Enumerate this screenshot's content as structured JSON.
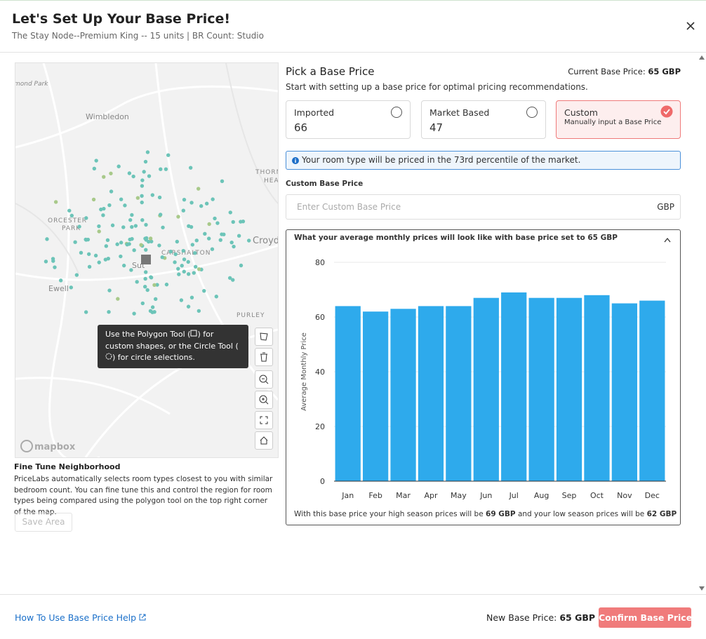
{
  "header": {
    "title": "Let's Set Up Your Base Price!",
    "subtitle": "The Stay Node--Premium King -- 15 units | BR Count: Studio"
  },
  "map": {
    "labels": [
      "mond Park",
      "Wimbledon",
      "THORN",
      "HEA",
      "ORCESTER",
      "PARK",
      "CARSHALTON",
      "Croyd",
      "Sut",
      "Ewell",
      "PURLEY"
    ],
    "attribution": "mapbox",
    "tooltip": [
      "Use the Polygon Tool (",
      ") for custom shapes, or the Circle Tool (",
      ") for circle selections."
    ]
  },
  "neighborhood": {
    "title": "Fine Tune Neighborhood",
    "description": "PriceLabs automatically selects room types closest to you with similar bedroom count. You can fine tune this and control the region for room types being compared using the polygon tool on the top right corner of the map.",
    "save_button": "Save Area"
  },
  "pick": {
    "title": "Pick a Base Price",
    "current_label": "Current Base Price:",
    "current_value": "65 GBP",
    "subtitle": "Start with setting up a base price for optimal pricing recommendations.",
    "options": [
      {
        "name": "Imported",
        "value": 66
      },
      {
        "name": "Market Based",
        "value": 47
      },
      {
        "name": "Custom",
        "description": "Manually input a Base Price"
      }
    ],
    "info": "Your room type will be priced in the 73rd percentile of the market.",
    "custom_label": "Custom Base Price",
    "custom_placeholder": "Enter Custom Base Price",
    "currency": "GBP"
  },
  "chart_data": {
    "type": "bar",
    "title": "What your average monthly prices will look like with base price set to 65 GBP",
    "y_label": "Average Monthly Price",
    "categories": [
      "Jan",
      "Feb",
      "Mar",
      "Apr",
      "May",
      "Jun",
      "Jul",
      "Aug",
      "Sep",
      "Oct",
      "Nov",
      "Dec"
    ],
    "values": [
      64,
      62,
      63,
      64,
      64,
      67,
      69,
      67,
      67,
      68,
      65,
      66
    ],
    "color": "#2eaaec",
    "ylim": [
      0,
      80
    ],
    "yticks": [
      0,
      20,
      40,
      60,
      80
    ],
    "grid": true,
    "note": [
      "With this base price your high season prices will be",
      "69 GBP",
      "and your low season prices will be",
      "62 GBP"
    ]
  },
  "footer": {
    "help_link": "How To Use Base Price Help",
    "new_label": "New Base Price:",
    "new_value": "65 GBP",
    "confirm": "Confirm Base Price"
  }
}
